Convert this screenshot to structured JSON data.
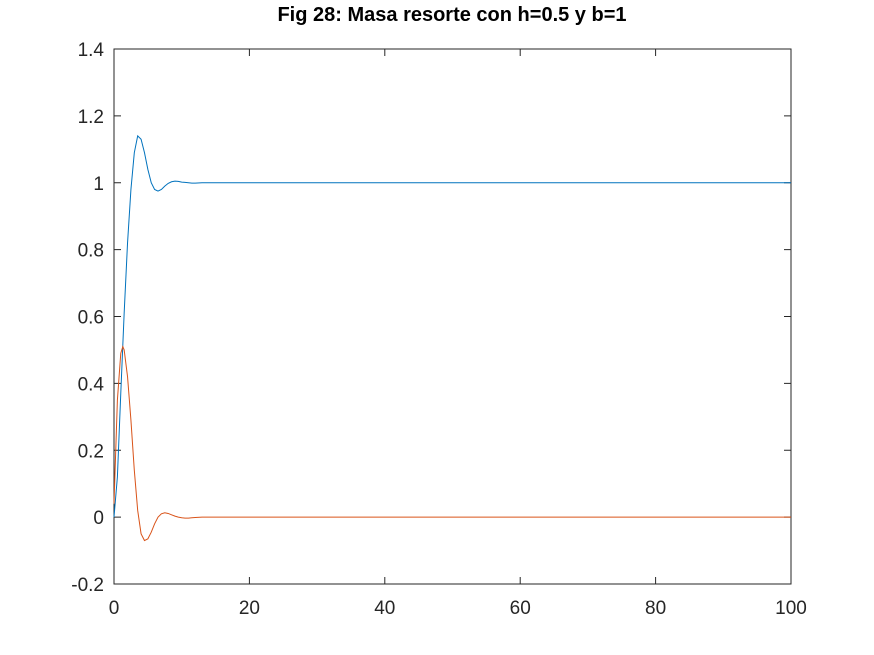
{
  "chart_data": {
    "type": "line",
    "title": "Fig 28: Masa resorte con h=0.5 y b=1",
    "xlabel": "",
    "ylabel": "",
    "xlim": [
      0,
      100
    ],
    "ylim": [
      -0.2,
      1.4
    ],
    "xticks": [
      0,
      20,
      40,
      60,
      80,
      100
    ],
    "xtick_labels": [
      "0",
      "20",
      "40",
      "60",
      "80",
      "100"
    ],
    "yticks": [
      -0.2,
      0,
      0.2,
      0.4,
      0.6,
      0.8,
      1,
      1.2,
      1.4
    ],
    "ytick_labels": [
      "-0.2",
      "0",
      "0.2",
      "0.4",
      "0.6",
      "0.8",
      "1",
      "1.2",
      "1.4"
    ],
    "grid": false,
    "legend": "none",
    "series": [
      {
        "color": "#0072bd",
        "x": [
          0,
          0.5,
          1,
          1.5,
          2,
          2.5,
          3,
          3.5,
          4,
          4.5,
          5,
          5.5,
          6,
          6.5,
          7,
          7.5,
          8,
          8.5,
          9,
          9.5,
          10,
          10.5,
          11,
          11.5,
          12,
          13,
          14,
          16,
          20,
          100
        ],
        "y": [
          0,
          0.12,
          0.37,
          0.61,
          0.82,
          0.98,
          1.09,
          1.14,
          1.13,
          1.09,
          1.04,
          1.0,
          0.98,
          0.975,
          0.98,
          0.99,
          0.998,
          1.003,
          1.005,
          1.004,
          1.002,
          1.001,
          1.0,
          0.999,
          0.999,
          1.0,
          1.0,
          1.0,
          1.0,
          1.0
        ]
      },
      {
        "color": "#d95319",
        "x": [
          0,
          0.5,
          1,
          1.3,
          1.5,
          2,
          2.5,
          3,
          3.5,
          4,
          4.5,
          5,
          5.5,
          6,
          6.5,
          7,
          7.5,
          8,
          8.5,
          9,
          9.5,
          10,
          10.5,
          11,
          11.5,
          12,
          13,
          14,
          16,
          20,
          100
        ],
        "y": [
          0.04,
          0.35,
          0.49,
          0.51,
          0.5,
          0.42,
          0.29,
          0.14,
          0.02,
          -0.05,
          -0.07,
          -0.065,
          -0.045,
          -0.02,
          0.0,
          0.01,
          0.013,
          0.011,
          0.007,
          0.003,
          0.0,
          -0.002,
          -0.003,
          -0.003,
          -0.002,
          -0.001,
          0.0,
          0.0,
          0.0,
          0.0,
          0.0
        ]
      }
    ]
  }
}
